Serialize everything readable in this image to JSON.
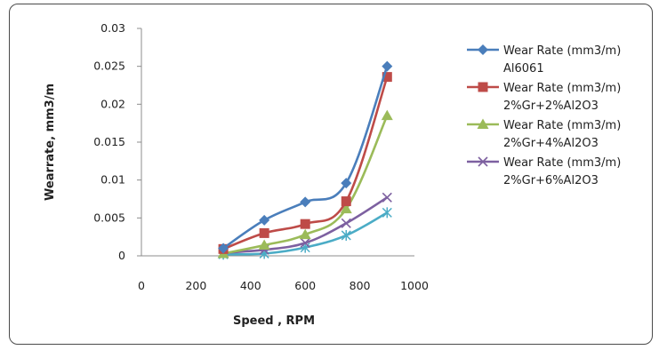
{
  "chart_data": {
    "type": "scatter",
    "title": "",
    "xlabel": "Speed , RPM",
    "ylabel": "Wearrate, mm3/m",
    "xlim": [
      0,
      1000
    ],
    "ylim": [
      0,
      0.03
    ],
    "x_ticks": [
      "0",
      "200",
      "400",
      "600",
      "800",
      "1000"
    ],
    "y_ticks": [
      "0",
      "0.005",
      "0.01",
      "0.015",
      "0.02",
      "0.025",
      "0.03"
    ],
    "grid": false,
    "legend_position": "right",
    "x": [
      300,
      450,
      600,
      750,
      900
    ],
    "series": [
      {
        "name": "Wear Rate (mm3/m) Al6061",
        "legend_lines": [
          "Wear Rate (mm3/m)",
          "Al6061"
        ],
        "color": "#4a7ebb",
        "marker": "diamond",
        "values": [
          0.001,
          0.0047,
          0.0071,
          0.0096,
          0.025
        ]
      },
      {
        "name": "Wear Rate (mm3/m) 2%Gr+2%Al2O3",
        "legend_lines": [
          "Wear Rate (mm3/m)",
          "2%Gr+2%Al2O3"
        ],
        "color": "#be4b48",
        "marker": "square",
        "values": [
          0.0009,
          0.003,
          0.0042,
          0.0072,
          0.0236
        ]
      },
      {
        "name": "Wear Rate (mm3/m) 2%Gr+4%Al2O3",
        "legend_lines": [
          "Wear Rate (mm3/m)",
          "2%Gr+4%Al2O3"
        ],
        "color": "#9bbb59",
        "marker": "triangle",
        "values": [
          0.0003,
          0.0014,
          0.0028,
          0.0062,
          0.0185
        ]
      },
      {
        "name": "Wear Rate (mm3/m) 2%Gr+6%Al2O3",
        "legend_lines": [
          "Wear Rate (mm3/m)",
          "2%Gr+6%Al2O3"
        ],
        "color": "#7d60a0",
        "marker": "x",
        "values": [
          0.0004,
          0.0008,
          0.0017,
          0.0043,
          0.0077
        ]
      },
      {
        "name": "",
        "legend_lines": [],
        "color": "#4bacc6",
        "marker": "asterisk",
        "values": [
          0.0002,
          0.0003,
          0.0011,
          0.0027,
          0.0057
        ]
      }
    ]
  }
}
